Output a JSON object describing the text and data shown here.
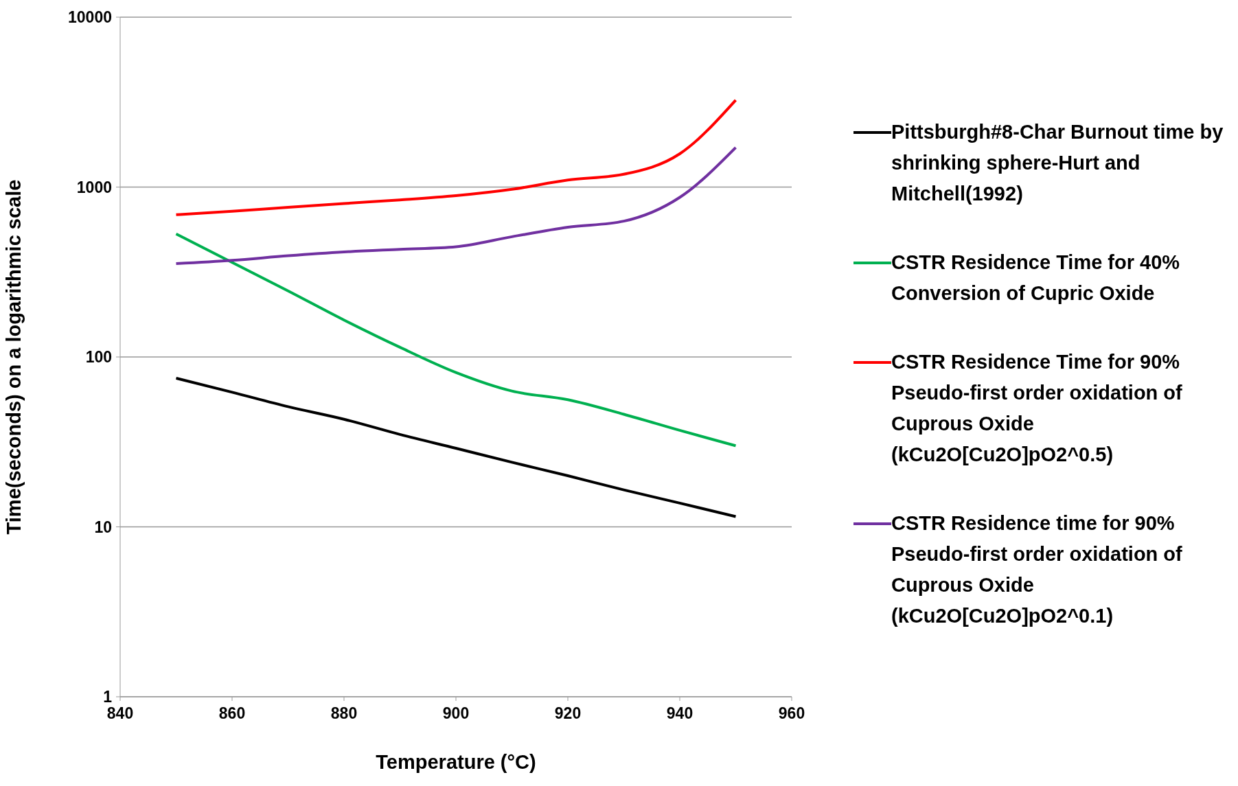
{
  "chart_data": {
    "type": "line",
    "xlabel": "Temperature (°C)",
    "ylabel": "Time(seconds) on a logarithmic scale",
    "log": "y",
    "grid": "y",
    "legend": "right",
    "marker": "none",
    "line_style": "solid",
    "x": [
      850,
      860,
      870,
      880,
      890,
      900,
      910,
      920,
      930,
      940,
      950
    ],
    "xlim": [
      840,
      960
    ],
    "xticks": [
      840,
      860,
      880,
      900,
      920,
      940,
      960
    ],
    "ylim": [
      1,
      10000
    ],
    "yticks": [
      1,
      10,
      100,
      1000,
      10000
    ],
    "series": [
      {
        "name": "Pittsburgh#8-Char Burnout time by shrinking sphere-Hurt and Mitchell(1992)",
        "color": "#000000",
        "values": [
          75,
          62,
          51,
          43,
          35,
          29,
          24,
          20,
          16.5,
          13.8,
          11.5
        ]
      },
      {
        "name": "CSTR Residence Time for 40% Conversion of Cupric Oxide",
        "color": "#00b050",
        "values": [
          530,
          360,
          245,
          165,
          114,
          81,
          63,
          56,
          46,
          37,
          30
        ]
      },
      {
        "name": "CSTR Residence Time for 90% Pseudo-first order oxidation of Cuprous Oxide (kCu2O[Cu2O]pO2^0.5)",
        "color": "#ff0000",
        "values": [
          687,
          720,
          760,
          800,
          840,
          890,
          970,
          1100,
          1190,
          1570,
          3250
        ]
      },
      {
        "name": "CSTR Residence time for 90% Pseudo-first order oxidation of Cuprous Oxide (kCu2O[Cu2O]pO2^0.1)",
        "color": "#7030a0",
        "values": [
          354,
          370,
          394,
          415,
          430,
          445,
          510,
          580,
          630,
          870,
          1710
        ]
      }
    ]
  }
}
